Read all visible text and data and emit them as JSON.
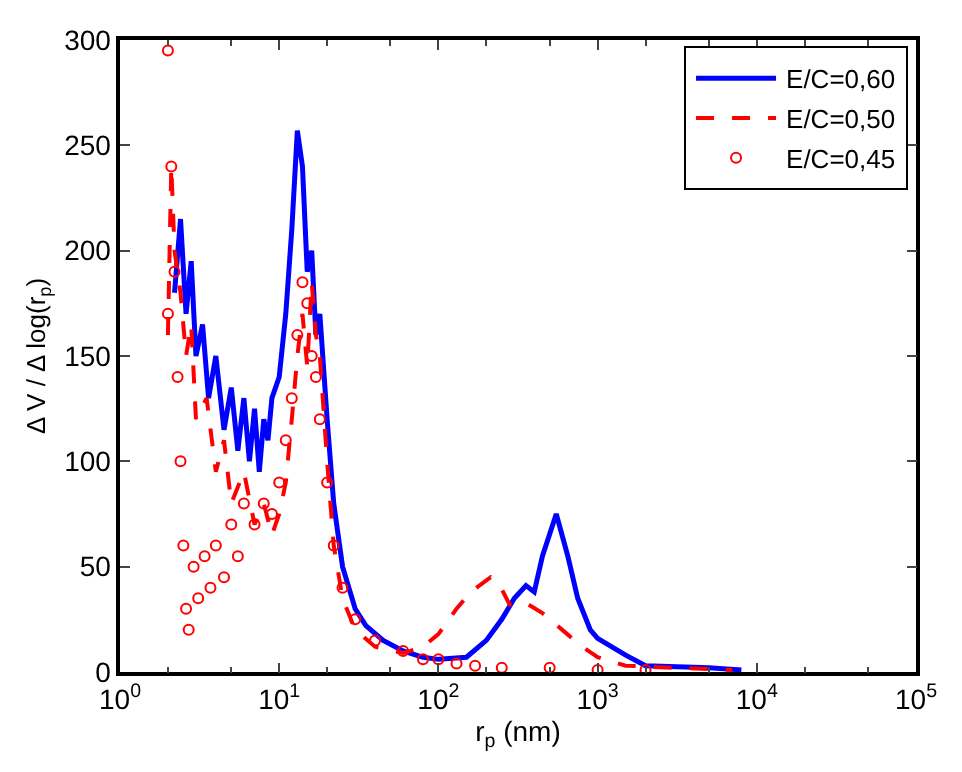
{
  "chart_data": {
    "type": "line",
    "xlabel": "r$_{p}$ (nm)",
    "ylabel": "Δ V / Δ log(r$_{p}$)",
    "log": "x",
    "xlim": [
      1,
      100000
    ],
    "xticks": [
      {
        "value": 1,
        "label": "10$^{0}$"
      },
      {
        "value": 10,
        "label": "10$^{1}$"
      },
      {
        "value": 100,
        "label": "10$^{2}$"
      },
      {
        "value": 1000,
        "label": "10$^{3}$"
      },
      {
        "value": 10000,
        "label": "10$^{4}$"
      },
      {
        "value": 100000,
        "label": "10$^{5}$"
      }
    ],
    "ylim": [
      0,
      300
    ],
    "yticks": [
      0,
      50,
      100,
      150,
      200,
      250,
      300
    ],
    "legend": "top right",
    "series": [
      {
        "name": "E/C=0,60",
        "color": "#0000ff",
        "line_style": "solid",
        "marker": "none",
        "x": [
          2.2,
          2.4,
          2.6,
          2.8,
          3.0,
          3.3,
          3.6,
          4,
          4.5,
          5,
          5.5,
          6,
          6.5,
          7,
          7.5,
          8,
          8.5,
          9,
          10,
          11,
          12,
          13,
          14,
          15,
          16,
          17,
          18,
          20,
          22,
          25,
          30,
          35,
          45,
          60,
          80,
          100,
          150,
          200,
          250,
          300,
          355,
          400,
          450,
          550,
          650,
          750,
          900,
          1000,
          1500,
          2000,
          5000,
          8000
        ],
        "values": [
          180,
          215,
          170,
          195,
          150,
          165,
          130,
          150,
          115,
          135,
          105,
          130,
          100,
          125,
          95,
          120,
          110,
          130,
          140,
          170,
          210,
          257,
          240,
          190,
          200,
          160,
          170,
          120,
          80,
          50,
          30,
          22,
          15,
          10,
          7,
          6,
          7,
          15,
          25,
          35,
          41,
          38,
          55,
          75,
          55,
          35,
          20,
          16,
          8,
          3,
          2,
          1
        ]
      },
      {
        "name": "E/C=0,50",
        "color": "#ff0000",
        "type": "line",
        "line_style": "dashed",
        "marker": "none",
        "x": [
          2.0,
          2.1,
          2.2,
          2.4,
          2.6,
          2.8,
          3,
          3.5,
          4,
          4.5,
          5,
          6,
          7,
          8,
          9,
          10,
          11,
          12,
          13,
          14,
          15,
          16,
          17,
          18,
          20,
          22,
          25,
          30,
          40,
          60,
          80,
          100,
          130,
          160,
          213,
          240,
          280,
          350,
          450,
          600,
          800,
          1000,
          1500,
          3000,
          7000
        ],
        "values": [
          160,
          240,
          200,
          180,
          150,
          165,
          120,
          130,
          95,
          110,
          80,
          95,
          70,
          80,
          65,
          75,
          90,
          120,
          150,
          170,
          145,
          185,
          160,
          150,
          100,
          60,
          35,
          20,
          12,
          9,
          12,
          18,
          30,
          38,
          45,
          42,
          32,
          33,
          28,
          20,
          12,
          7,
          3,
          2,
          1
        ]
      },
      {
        "name": "E/C=0,45",
        "color": "#ff0000",
        "type": "scatter",
        "marker": "circle",
        "x": [
          2.0,
          2.0,
          2.1,
          2.2,
          2.3,
          2.4,
          2.5,
          2.6,
          2.7,
          2.9,
          3.1,
          3.4,
          3.7,
          4,
          4.5,
          5,
          5.5,
          6,
          7,
          8,
          9,
          10,
          11,
          12,
          13,
          14,
          15,
          16,
          17,
          18,
          20,
          22,
          25,
          30,
          40,
          60,
          80,
          100,
          130,
          170,
          250,
          500,
          1000,
          2000
        ],
        "values": [
          295,
          170,
          240,
          190,
          140,
          100,
          60,
          30,
          20,
          50,
          35,
          55,
          40,
          60,
          45,
          70,
          55,
          80,
          70,
          80,
          75,
          90,
          110,
          130,
          160,
          185,
          175,
          150,
          140,
          120,
          90,
          60,
          40,
          25,
          15,
          10,
          6,
          6,
          4,
          3,
          2,
          2,
          1,
          1
        ]
      }
    ]
  }
}
